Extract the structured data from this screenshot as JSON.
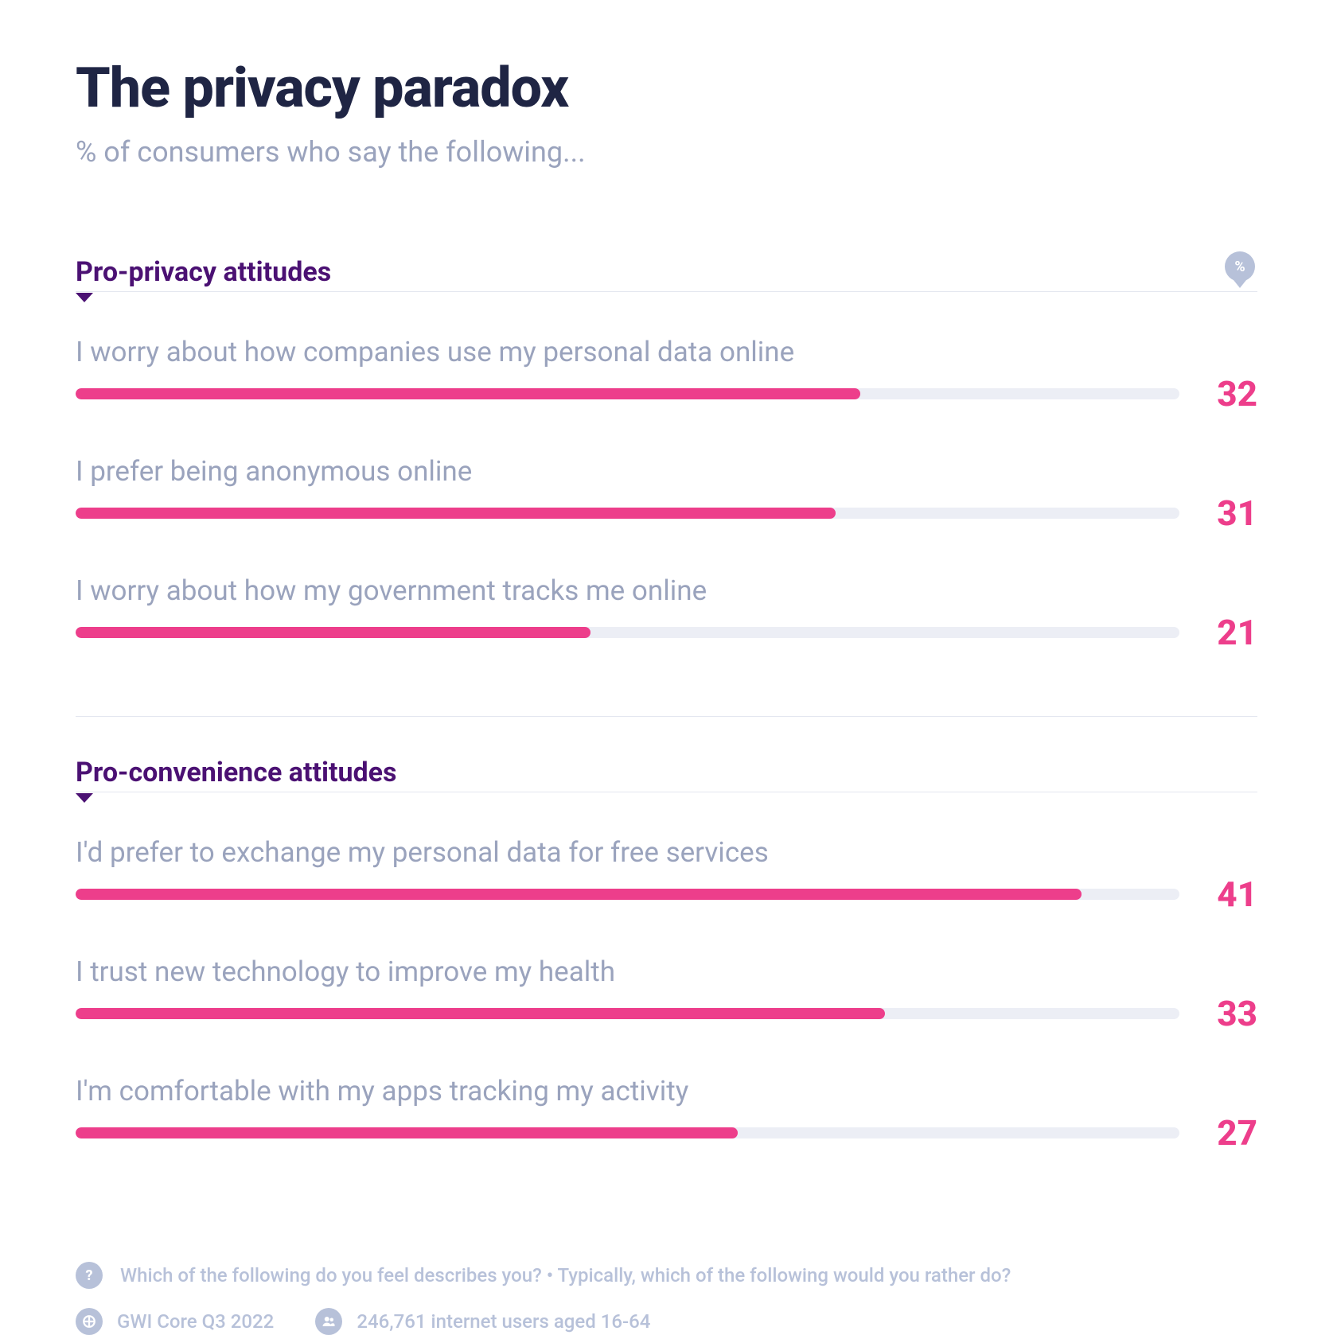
{
  "header": {
    "title": "The privacy paradox",
    "subtitle": "% of consumers who say the following...",
    "title_color": "#1f2544",
    "title_fontsize": 70,
    "subtitle_color": "#9aa3bd",
    "subtitle_fontsize": 36
  },
  "percent_marker_label": "%",
  "bar_max_percent": 45,
  "colors": {
    "bar_fill": "#ed3e8b",
    "bar_track": "#eceef5",
    "section_title": "#4b1173",
    "muted_text": "#9aa3bd",
    "value_text": "#ed3e8b",
    "footer_text": "#b7c1d9",
    "divider": "#e4e7f0",
    "background": "#ffffff"
  },
  "sections": [
    {
      "title": "Pro-privacy attitudes",
      "show_percent_marker": true,
      "rows": [
        {
          "label": "I worry about how companies use my personal data online",
          "value": 32
        },
        {
          "label": "I prefer being anonymous online",
          "value": 31
        },
        {
          "label": "I worry about how my government tracks me online",
          "value": 21
        }
      ]
    },
    {
      "title": "Pro-convenience attitudes",
      "show_percent_marker": false,
      "rows": [
        {
          "label": "I'd prefer to exchange my personal data for free services",
          "value": 41
        },
        {
          "label": "I trust new technology to improve my health",
          "value": 33
        },
        {
          "label": "I'm comfortable with my apps tracking my activity",
          "value": 27
        }
      ]
    }
  ],
  "footer": {
    "question_text": "Which of the following do you feel describes you? • Typically, which of the following would you rather do?",
    "source_text": "GWI Core Q3 2022",
    "sample_text": "246,761 internet users aged 16-64",
    "fontsize": 24
  }
}
